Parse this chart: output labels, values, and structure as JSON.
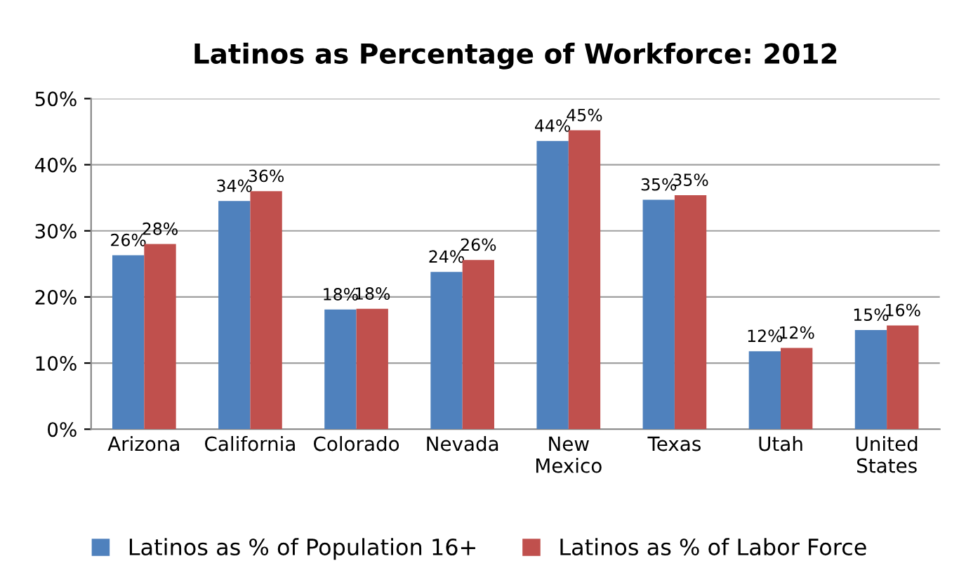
{
  "chart_data": {
    "type": "bar",
    "title": "Latinos as Percentage of Workforce: 2012",
    "categories": [
      "Arizona",
      "California",
      "Colorado",
      "Nevada",
      "New Mexico",
      "Texas",
      "Utah",
      "United States"
    ],
    "series": [
      {
        "name": "Latinos as % of Population 16+",
        "color": "#4f81bd",
        "values": [
          26.3,
          34.5,
          18.1,
          23.8,
          43.6,
          34.7,
          11.8,
          15.0
        ],
        "value_labels": [
          "26%",
          "34%",
          "18%",
          "24%",
          "44%",
          "35%",
          "12%",
          "15%"
        ]
      },
      {
        "name": "Latinos as % of Labor Force",
        "color": "#c0504d",
        "values": [
          28.0,
          36.0,
          18.2,
          25.6,
          45.2,
          35.4,
          12.3,
          15.7
        ],
        "value_labels": [
          "28%",
          "36%",
          "18%",
          "26%",
          "45%",
          "35%",
          "12%",
          "16%"
        ]
      }
    ],
    "ylim": [
      0,
      50
    ],
    "yticks": [
      {
        "value": 0,
        "label": "0%"
      },
      {
        "value": 10,
        "label": "10%"
      },
      {
        "value": 20,
        "label": "20%"
      },
      {
        "value": 30,
        "label": "30%"
      },
      {
        "value": 40,
        "label": "40%"
      },
      {
        "value": 50,
        "label": "50%"
      }
    ],
    "grid": "y",
    "legend": "bottom"
  }
}
